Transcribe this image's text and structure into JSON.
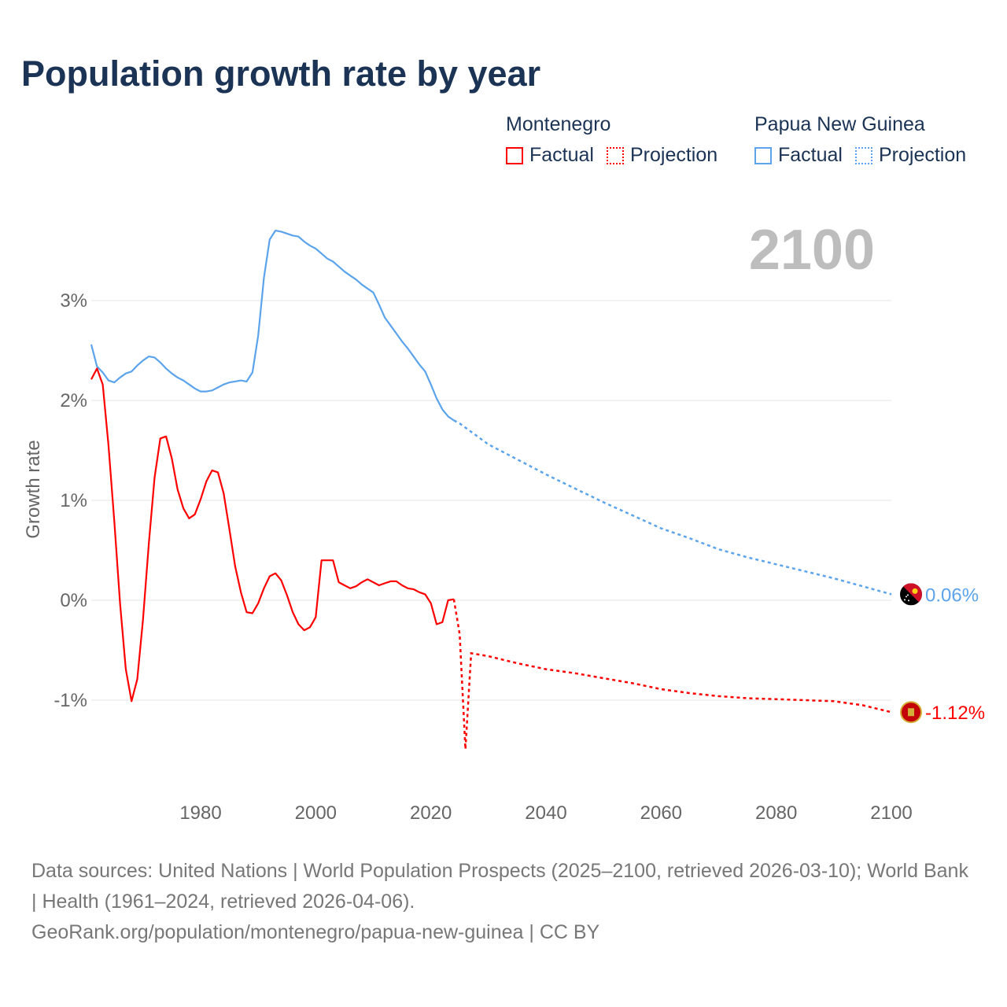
{
  "title": "Population growth rate by year",
  "legend": {
    "groups": [
      {
        "name": "Montenegro",
        "factual": "Factual",
        "projection": "Projection",
        "color": "#ff0000"
      },
      {
        "name": "Papua New Guinea",
        "factual": "Factual",
        "projection": "Projection",
        "color": "#5ba4ec"
      }
    ]
  },
  "footer": {
    "line1": "Data sources: United Nations | World Population Prospects (2025–2100, retrieved 2026-03-10); World Bank | Health (1961–2024, retrieved 2026-04-06).",
    "line2": "GeoRank.org/population/montenegro/papua-new-guinea | CC BY"
  },
  "chart_data": {
    "type": "line",
    "title": "Population growth rate by year",
    "year_label": "2100",
    "xlabel": "",
    "ylabel": "Growth rate",
    "xlim": [
      1961,
      2100
    ],
    "ylim": [
      -1.9,
      3.8
    ],
    "x_ticks": [
      1980,
      2000,
      2020,
      2040,
      2060,
      2080,
      2100
    ],
    "y_ticks": [
      {
        "v": 3,
        "label": "3%"
      },
      {
        "v": 2,
        "label": "2%"
      },
      {
        "v": 1,
        "label": "1%"
      },
      {
        "v": 0,
        "label": "0%"
      },
      {
        "v": -1,
        "label": "-1%"
      }
    ],
    "grid": true,
    "series": [
      {
        "name": "Papua New Guinea",
        "color": "#5ba4ec",
        "end_label": "0.06%",
        "factual": {
          "x": [
            1961,
            1962,
            1963,
            1964,
            1965,
            1966,
            1967,
            1968,
            1969,
            1970,
            1971,
            1972,
            1973,
            1974,
            1975,
            1976,
            1977,
            1978,
            1979,
            1980,
            1981,
            1982,
            1983,
            1984,
            1985,
            1986,
            1987,
            1988,
            1989,
            1990,
            1991,
            1992,
            1993,
            1994,
            1995,
            1996,
            1997,
            1998,
            1999,
            2000,
            2001,
            2002,
            2003,
            2004,
            2005,
            2006,
            2007,
            2008,
            2009,
            2010,
            2011,
            2012,
            2013,
            2014,
            2015,
            2016,
            2017,
            2018,
            2019,
            2020,
            2021,
            2022,
            2023,
            2024
          ],
          "y": [
            2.56,
            2.34,
            2.28,
            2.2,
            2.18,
            2.23,
            2.27,
            2.29,
            2.35,
            2.4,
            2.44,
            2.43,
            2.38,
            2.32,
            2.27,
            2.23,
            2.2,
            2.16,
            2.12,
            2.09,
            2.09,
            2.1,
            2.13,
            2.16,
            2.18,
            2.19,
            2.2,
            2.19,
            2.28,
            2.65,
            3.23,
            3.61,
            3.7,
            3.69,
            3.67,
            3.65,
            3.64,
            3.59,
            3.55,
            3.52,
            3.47,
            3.42,
            3.39,
            3.34,
            3.29,
            3.25,
            3.21,
            3.16,
            3.12,
            3.08,
            2.96,
            2.83,
            2.75,
            2.67,
            2.59,
            2.52,
            2.44,
            2.36,
            2.29,
            2.16,
            2.02,
            1.91,
            1.84,
            1.8
          ]
        },
        "projection": {
          "x": [
            2024,
            2025,
            2030,
            2035,
            2040,
            2045,
            2050,
            2055,
            2060,
            2065,
            2070,
            2075,
            2080,
            2085,
            2090,
            2095,
            2100
          ],
          "y": [
            1.8,
            1.77,
            1.56,
            1.41,
            1.26,
            1.12,
            0.98,
            0.85,
            0.72,
            0.62,
            0.51,
            0.43,
            0.36,
            0.29,
            0.22,
            0.14,
            0.06
          ]
        }
      },
      {
        "name": "Montenegro",
        "color": "#ff0000",
        "end_label": "-1.12%",
        "factual": {
          "x": [
            1961,
            1962,
            1963,
            1964,
            1965,
            1966,
            1967,
            1968,
            1969,
            1970,
            1971,
            1972,
            1973,
            1974,
            1975,
            1976,
            1977,
            1978,
            1979,
            1980,
            1981,
            1982,
            1983,
            1984,
            1985,
            1986,
            1987,
            1988,
            1989,
            1990,
            1991,
            1992,
            1993,
            1994,
            1995,
            1996,
            1997,
            1998,
            1999,
            2000,
            2001,
            2002,
            2003,
            2004,
            2005,
            2006,
            2007,
            2008,
            2009,
            2010,
            2011,
            2012,
            2013,
            2014,
            2015,
            2016,
            2017,
            2018,
            2019,
            2020,
            2021,
            2022,
            2023,
            2024
          ],
          "y": [
            2.21,
            2.32,
            2.16,
            1.55,
            0.79,
            -0.03,
            -0.69,
            -1.01,
            -0.79,
            -0.19,
            0.57,
            1.23,
            1.62,
            1.64,
            1.42,
            1.11,
            0.92,
            0.82,
            0.86,
            1.01,
            1.19,
            1.3,
            1.28,
            1.07,
            0.71,
            0.34,
            0.08,
            -0.12,
            -0.13,
            -0.03,
            0.12,
            0.24,
            0.27,
            0.2,
            0.05,
            -0.12,
            -0.24,
            -0.3,
            -0.27,
            -0.17,
            0.4,
            0.4,
            0.4,
            0.18,
            0.15,
            0.12,
            0.14,
            0.18,
            0.21,
            0.18,
            0.15,
            0.17,
            0.19,
            0.19,
            0.15,
            0.12,
            0.11,
            0.08,
            0.06,
            -0.03,
            -0.24,
            -0.22,
            0.0,
            0.01
          ]
        },
        "projection": {
          "x": [
            2024,
            2025,
            2026,
            2027,
            2030,
            2035,
            2040,
            2045,
            2050,
            2055,
            2060,
            2065,
            2070,
            2075,
            2080,
            2085,
            2090,
            2095,
            2100
          ],
          "y": [
            0.01,
            -0.34,
            -1.49,
            -0.53,
            -0.56,
            -0.63,
            -0.69,
            -0.73,
            -0.78,
            -0.83,
            -0.89,
            -0.93,
            -0.96,
            -0.98,
            -0.99,
            -1.0,
            -1.01,
            -1.05,
            -1.12
          ]
        }
      }
    ]
  }
}
